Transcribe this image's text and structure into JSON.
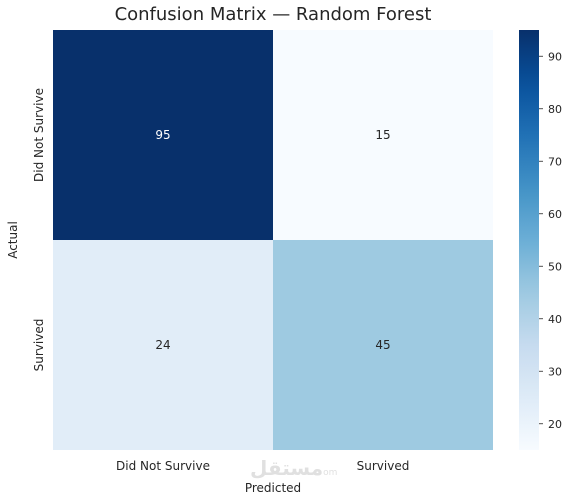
{
  "chart_data": {
    "type": "heatmap",
    "title": "Confusion Matrix — Random Forest",
    "xlabel": "Predicted",
    "ylabel": "Actual",
    "x_categories": [
      "Did Not Survive",
      "Survived"
    ],
    "y_categories": [
      "Did Not Survive",
      "Survived"
    ],
    "values": [
      [
        95,
        15
      ],
      [
        24,
        45
      ]
    ],
    "colormap": "Blues",
    "color_range": [
      15,
      95
    ],
    "colorbar_ticks": [
      20,
      30,
      40,
      50,
      60,
      70,
      80,
      90
    ],
    "annotation_colors": {
      "dark_cell": "#ffffff",
      "light_cell": "#262626"
    }
  },
  "watermark": {
    "text": "مستقل",
    "sub": "om"
  }
}
